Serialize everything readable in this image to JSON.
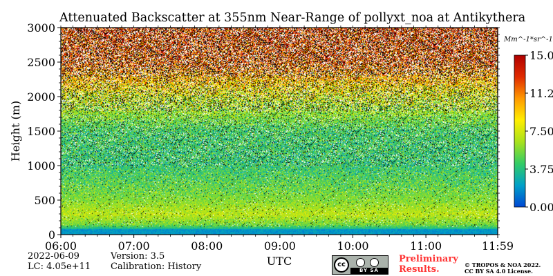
{
  "chart_data": {
    "type": "heatmap",
    "title": "Attenuated Backscatter at 355nm Near-Range of pollyxt_noa at Antikythera",
    "xlabel": "UTC",
    "ylabel": "Height (m)",
    "x_ticks": [
      "06:00",
      "07:00",
      "08:00",
      "09:00",
      "10:00",
      "11:00",
      "11:59"
    ],
    "y_ticks": [
      "0",
      "500",
      "1000",
      "1500",
      "2000",
      "2500",
      "3000"
    ],
    "ylim": [
      0,
      3000
    ],
    "xlim": [
      "06:00",
      "11:59"
    ],
    "colorbar": {
      "unit": "Mm^-1*sr^-1",
      "ticks": [
        "0.00",
        "3.75",
        "7.50",
        "11.25",
        "15.00"
      ],
      "range": [
        0,
        15
      ],
      "colormap": [
        "#0047d4",
        "#00a0c8",
        "#33cc66",
        "#a8e21c",
        "#ffee00",
        "#ff9a00",
        "#e02a00",
        "#b00000"
      ]
    },
    "profile_by_height": [
      {
        "height_m": 50,
        "mean": 2.0
      },
      {
        "height_m": 150,
        "mean": 5.5
      },
      {
        "height_m": 300,
        "mean": 7.0
      },
      {
        "height_m": 500,
        "mean": 5.8
      },
      {
        "height_m": 1000,
        "mean": 4.2
      },
      {
        "height_m": 1500,
        "mean": 4.5
      },
      {
        "height_m": 2000,
        "mean": 7.5
      },
      {
        "height_m": 2500,
        "mean": 12.0
      },
      {
        "height_m": 3000,
        "mean": 12.5
      }
    ]
  },
  "footer": {
    "date": "2022-06-09",
    "lc": "LC: 4.05e+11",
    "version": "Version: 3.5",
    "calibration": "Calibration: History",
    "cc_text": "BY   SA",
    "cc_mark": "cc",
    "preliminary_line1": "Preliminary",
    "preliminary_line2": "Results.",
    "copyright_line1": "© TROPOS & NOA 2022.",
    "copyright_line2": "CC BY SA 4.0 License."
  }
}
